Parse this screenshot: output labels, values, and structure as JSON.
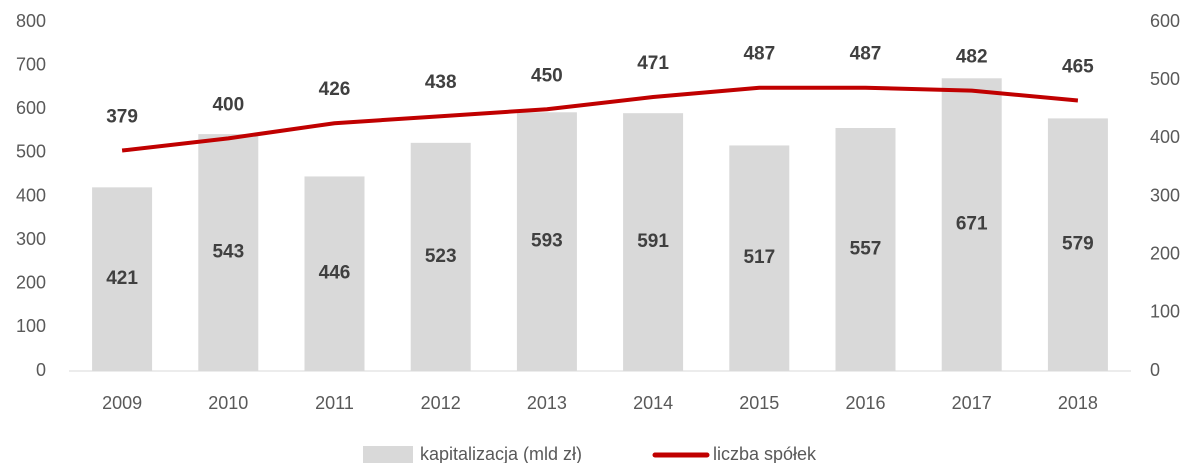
{
  "chart_data": {
    "type": "combo",
    "categories": [
      "2009",
      "2010",
      "2011",
      "2012",
      "2013",
      "2014",
      "2015",
      "2016",
      "2017",
      "2018"
    ],
    "series": [
      {
        "name": "kapitalizacja (mld zł)",
        "type": "bar",
        "color": "#d9d9d9",
        "axis": "y",
        "values": [
          421,
          543,
          446,
          523,
          593,
          591,
          517,
          557,
          671,
          579
        ]
      },
      {
        "name": "liczba spółek",
        "type": "line",
        "color": "#c00000",
        "axis": "y2",
        "values": [
          379,
          400,
          426,
          438,
          450,
          471,
          487,
          487,
          482,
          465
        ]
      }
    ],
    "ylim": [
      0,
      800
    ],
    "yticks": [
      0,
      100,
      200,
      300,
      400,
      500,
      600,
      700,
      800
    ],
    "y2lim": [
      0,
      600
    ],
    "y2ticks": [
      0,
      100,
      200,
      300,
      400,
      500,
      600
    ],
    "grid": false,
    "legend": "bottom"
  }
}
